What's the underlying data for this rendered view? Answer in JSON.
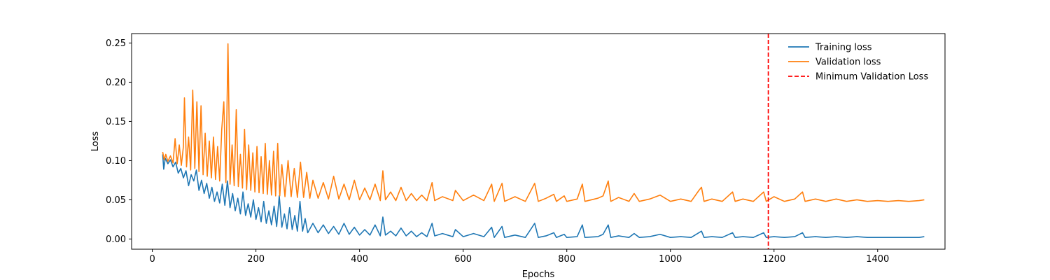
{
  "chart_data": {
    "type": "line",
    "title": "",
    "xlabel": "Epochs",
    "ylabel": "Loss",
    "xlim": [
      -40,
      1530
    ],
    "ylim": [
      -0.013,
      0.262
    ],
    "x_ticks": [
      0,
      200,
      400,
      600,
      800,
      1000,
      1200,
      1400
    ],
    "x_tick_labels": [
      "0",
      "200",
      "400",
      "600",
      "800",
      "1000",
      "1200",
      "1400"
    ],
    "y_ticks": [
      0.0,
      0.05,
      0.1,
      0.15,
      0.2,
      0.25
    ],
    "y_tick_labels": [
      "0.00",
      "0.05",
      "0.10",
      "0.15",
      "0.20",
      "0.25"
    ],
    "grid": false,
    "legend_position": "top-right",
    "series": [
      {
        "name": "Training loss",
        "color": "#1f77b4",
        "style": "solid",
        "points": [
          [
            20,
            0.108
          ],
          [
            22,
            0.089
          ],
          [
            25,
            0.103
          ],
          [
            30,
            0.096
          ],
          [
            35,
            0.101
          ],
          [
            40,
            0.092
          ],
          [
            45,
            0.098
          ],
          [
            50,
            0.084
          ],
          [
            55,
            0.09
          ],
          [
            60,
            0.078
          ],
          [
            65,
            0.087
          ],
          [
            70,
            0.068
          ],
          [
            75,
            0.082
          ],
          [
            80,
            0.074
          ],
          [
            85,
            0.088
          ],
          [
            90,
            0.062
          ],
          [
            95,
            0.075
          ],
          [
            100,
            0.058
          ],
          [
            105,
            0.071
          ],
          [
            110,
            0.052
          ],
          [
            115,
            0.066
          ],
          [
            120,
            0.048
          ],
          [
            125,
            0.06
          ],
          [
            130,
            0.046
          ],
          [
            135,
            0.07
          ],
          [
            140,
            0.043
          ],
          [
            145,
            0.074
          ],
          [
            150,
            0.04
          ],
          [
            155,
            0.058
          ],
          [
            160,
            0.036
          ],
          [
            165,
            0.052
          ],
          [
            170,
            0.032
          ],
          [
            175,
            0.06
          ],
          [
            180,
            0.03
          ],
          [
            185,
            0.045
          ],
          [
            190,
            0.028
          ],
          [
            195,
            0.05
          ],
          [
            200,
            0.025
          ],
          [
            205,
            0.04
          ],
          [
            210,
            0.022
          ],
          [
            215,
            0.048
          ],
          [
            220,
            0.02
          ],
          [
            225,
            0.036
          ],
          [
            230,
            0.018
          ],
          [
            235,
            0.042
          ],
          [
            240,
            0.016
          ],
          [
            245,
            0.055
          ],
          [
            250,
            0.015
          ],
          [
            255,
            0.032
          ],
          [
            260,
            0.013
          ],
          [
            265,
            0.04
          ],
          [
            270,
            0.012
          ],
          [
            275,
            0.03
          ],
          [
            280,
            0.01
          ],
          [
            285,
            0.048
          ],
          [
            290,
            0.01
          ],
          [
            295,
            0.026
          ],
          [
            300,
            0.008
          ],
          [
            310,
            0.02
          ],
          [
            320,
            0.008
          ],
          [
            330,
            0.018
          ],
          [
            340,
            0.007
          ],
          [
            350,
            0.016
          ],
          [
            360,
            0.006
          ],
          [
            370,
            0.02
          ],
          [
            380,
            0.006
          ],
          [
            390,
            0.015
          ],
          [
            400,
            0.005
          ],
          [
            410,
            0.012
          ],
          [
            420,
            0.005
          ],
          [
            430,
            0.018
          ],
          [
            440,
            0.004
          ],
          [
            445,
            0.028
          ],
          [
            450,
            0.005
          ],
          [
            460,
            0.01
          ],
          [
            470,
            0.004
          ],
          [
            480,
            0.014
          ],
          [
            490,
            0.004
          ],
          [
            500,
            0.01
          ],
          [
            510,
            0.003
          ],
          [
            520,
            0.008
          ],
          [
            530,
            0.003
          ],
          [
            540,
            0.02
          ],
          [
            545,
            0.004
          ],
          [
            560,
            0.007
          ],
          [
            580,
            0.003
          ],
          [
            585,
            0.012
          ],
          [
            600,
            0.003
          ],
          [
            620,
            0.007
          ],
          [
            640,
            0.003
          ],
          [
            655,
            0.015
          ],
          [
            660,
            0.002
          ],
          [
            675,
            0.016
          ],
          [
            680,
            0.002
          ],
          [
            700,
            0.005
          ],
          [
            720,
            0.002
          ],
          [
            738,
            0.02
          ],
          [
            745,
            0.002
          ],
          [
            760,
            0.004
          ],
          [
            775,
            0.008
          ],
          [
            780,
            0.002
          ],
          [
            795,
            0.006
          ],
          [
            800,
            0.002
          ],
          [
            820,
            0.003
          ],
          [
            830,
            0.018
          ],
          [
            835,
            0.002
          ],
          [
            860,
            0.003
          ],
          [
            870,
            0.006
          ],
          [
            880,
            0.018
          ],
          [
            885,
            0.002
          ],
          [
            900,
            0.004
          ],
          [
            920,
            0.002
          ],
          [
            930,
            0.007
          ],
          [
            940,
            0.002
          ],
          [
            960,
            0.003
          ],
          [
            980,
            0.006
          ],
          [
            1000,
            0.002
          ],
          [
            1020,
            0.003
          ],
          [
            1040,
            0.002
          ],
          [
            1055,
            0.008
          ],
          [
            1060,
            0.01
          ],
          [
            1065,
            0.002
          ],
          [
            1080,
            0.003
          ],
          [
            1100,
            0.002
          ],
          [
            1120,
            0.008
          ],
          [
            1125,
            0.002
          ],
          [
            1140,
            0.003
          ],
          [
            1160,
            0.002
          ],
          [
            1180,
            0.008
          ],
          [
            1185,
            0.002
          ],
          [
            1200,
            0.003
          ],
          [
            1220,
            0.002
          ],
          [
            1240,
            0.003
          ],
          [
            1255,
            0.008
          ],
          [
            1260,
            0.002
          ],
          [
            1280,
            0.003
          ],
          [
            1300,
            0.002
          ],
          [
            1320,
            0.003
          ],
          [
            1340,
            0.002
          ],
          [
            1360,
            0.003
          ],
          [
            1380,
            0.002
          ],
          [
            1400,
            0.002
          ],
          [
            1420,
            0.002
          ],
          [
            1440,
            0.002
          ],
          [
            1460,
            0.002
          ],
          [
            1480,
            0.002
          ],
          [
            1490,
            0.003
          ]
        ]
      },
      {
        "name": "Validation loss",
        "color": "#ff7f0e",
        "style": "solid",
        "points": [
          [
            20,
            0.111
          ],
          [
            23,
            0.101
          ],
          [
            26,
            0.108
          ],
          [
            30,
            0.099
          ],
          [
            35,
            0.106
          ],
          [
            40,
            0.097
          ],
          [
            44,
            0.128
          ],
          [
            48,
            0.096
          ],
          [
            52,
            0.12
          ],
          [
            56,
            0.094
          ],
          [
            60,
            0.118
          ],
          [
            62,
            0.18
          ],
          [
            66,
            0.092
          ],
          [
            70,
            0.13
          ],
          [
            74,
            0.088
          ],
          [
            78,
            0.19
          ],
          [
            82,
            0.09
          ],
          [
            86,
            0.175
          ],
          [
            90,
            0.086
          ],
          [
            94,
            0.17
          ],
          [
            98,
            0.082
          ],
          [
            102,
            0.135
          ],
          [
            106,
            0.08
          ],
          [
            110,
            0.125
          ],
          [
            114,
            0.078
          ],
          [
            118,
            0.13
          ],
          [
            122,
            0.076
          ],
          [
            126,
            0.118
          ],
          [
            130,
            0.074
          ],
          [
            134,
            0.14
          ],
          [
            138,
            0.175
          ],
          [
            142,
            0.072
          ],
          [
            146,
            0.249
          ],
          [
            150,
            0.07
          ],
          [
            154,
            0.12
          ],
          [
            158,
            0.068
          ],
          [
            162,
            0.165
          ],
          [
            166,
            0.067
          ],
          [
            170,
            0.108
          ],
          [
            174,
            0.065
          ],
          [
            178,
            0.14
          ],
          [
            182,
            0.063
          ],
          [
            186,
            0.12
          ],
          [
            190,
            0.062
          ],
          [
            194,
            0.11
          ],
          [
            198,
            0.06
          ],
          [
            202,
            0.118
          ],
          [
            206,
            0.059
          ],
          [
            210,
            0.105
          ],
          [
            214,
            0.058
          ],
          [
            218,
            0.122
          ],
          [
            222,
            0.057
          ],
          [
            226,
            0.1
          ],
          [
            230,
            0.056
          ],
          [
            234,
            0.112
          ],
          [
            238,
            0.055
          ],
          [
            242,
            0.122
          ],
          [
            246,
            0.055
          ],
          [
            250,
            0.095
          ],
          [
            256,
            0.054
          ],
          [
            262,
            0.1
          ],
          [
            268,
            0.054
          ],
          [
            274,
            0.09
          ],
          [
            280,
            0.053
          ],
          [
            286,
            0.098
          ],
          [
            292,
            0.053
          ],
          [
            298,
            0.085
          ],
          [
            304,
            0.052
          ],
          [
            310,
            0.075
          ],
          [
            320,
            0.052
          ],
          [
            330,
            0.072
          ],
          [
            340,
            0.051
          ],
          [
            350,
            0.08
          ],
          [
            360,
            0.051
          ],
          [
            370,
            0.07
          ],
          [
            380,
            0.05
          ],
          [
            390,
            0.075
          ],
          [
            400,
            0.05
          ],
          [
            410,
            0.065
          ],
          [
            420,
            0.05
          ],
          [
            430,
            0.07
          ],
          [
            440,
            0.049
          ],
          [
            445,
            0.087
          ],
          [
            450,
            0.05
          ],
          [
            460,
            0.06
          ],
          [
            470,
            0.049
          ],
          [
            480,
            0.066
          ],
          [
            490,
            0.049
          ],
          [
            500,
            0.058
          ],
          [
            510,
            0.049
          ],
          [
            520,
            0.056
          ],
          [
            530,
            0.049
          ],
          [
            540,
            0.072
          ],
          [
            545,
            0.049
          ],
          [
            560,
            0.054
          ],
          [
            580,
            0.049
          ],
          [
            585,
            0.062
          ],
          [
            600,
            0.049
          ],
          [
            620,
            0.056
          ],
          [
            640,
            0.049
          ],
          [
            655,
            0.07
          ],
          [
            660,
            0.048
          ],
          [
            675,
            0.071
          ],
          [
            680,
            0.048
          ],
          [
            700,
            0.054
          ],
          [
            720,
            0.048
          ],
          [
            738,
            0.071
          ],
          [
            745,
            0.048
          ],
          [
            760,
            0.052
          ],
          [
            775,
            0.057
          ],
          [
            780,
            0.048
          ],
          [
            795,
            0.055
          ],
          [
            800,
            0.048
          ],
          [
            820,
            0.051
          ],
          [
            830,
            0.07
          ],
          [
            835,
            0.048
          ],
          [
            860,
            0.052
          ],
          [
            870,
            0.055
          ],
          [
            880,
            0.074
          ],
          [
            885,
            0.048
          ],
          [
            900,
            0.053
          ],
          [
            920,
            0.048
          ],
          [
            930,
            0.058
          ],
          [
            940,
            0.048
          ],
          [
            960,
            0.051
          ],
          [
            980,
            0.056
          ],
          [
            1000,
            0.048
          ],
          [
            1020,
            0.051
          ],
          [
            1040,
            0.048
          ],
          [
            1055,
            0.062
          ],
          [
            1060,
            0.066
          ],
          [
            1065,
            0.048
          ],
          [
            1080,
            0.051
          ],
          [
            1100,
            0.048
          ],
          [
            1120,
            0.06
          ],
          [
            1125,
            0.048
          ],
          [
            1140,
            0.051
          ],
          [
            1160,
            0.048
          ],
          [
            1180,
            0.06
          ],
          [
            1185,
            0.048
          ],
          [
            1200,
            0.054
          ],
          [
            1220,
            0.048
          ],
          [
            1240,
            0.051
          ],
          [
            1255,
            0.06
          ],
          [
            1260,
            0.048
          ],
          [
            1280,
            0.051
          ],
          [
            1300,
            0.048
          ],
          [
            1320,
            0.051
          ],
          [
            1340,
            0.048
          ],
          [
            1360,
            0.05
          ],
          [
            1380,
            0.048
          ],
          [
            1400,
            0.049
          ],
          [
            1420,
            0.048
          ],
          [
            1440,
            0.049
          ],
          [
            1460,
            0.048
          ],
          [
            1480,
            0.049
          ],
          [
            1490,
            0.05
          ]
        ]
      }
    ],
    "vlines": [
      {
        "name": "Minimum Validation Loss",
        "x": 1189,
        "color": "#ff0000",
        "style": "dashed"
      }
    ]
  }
}
